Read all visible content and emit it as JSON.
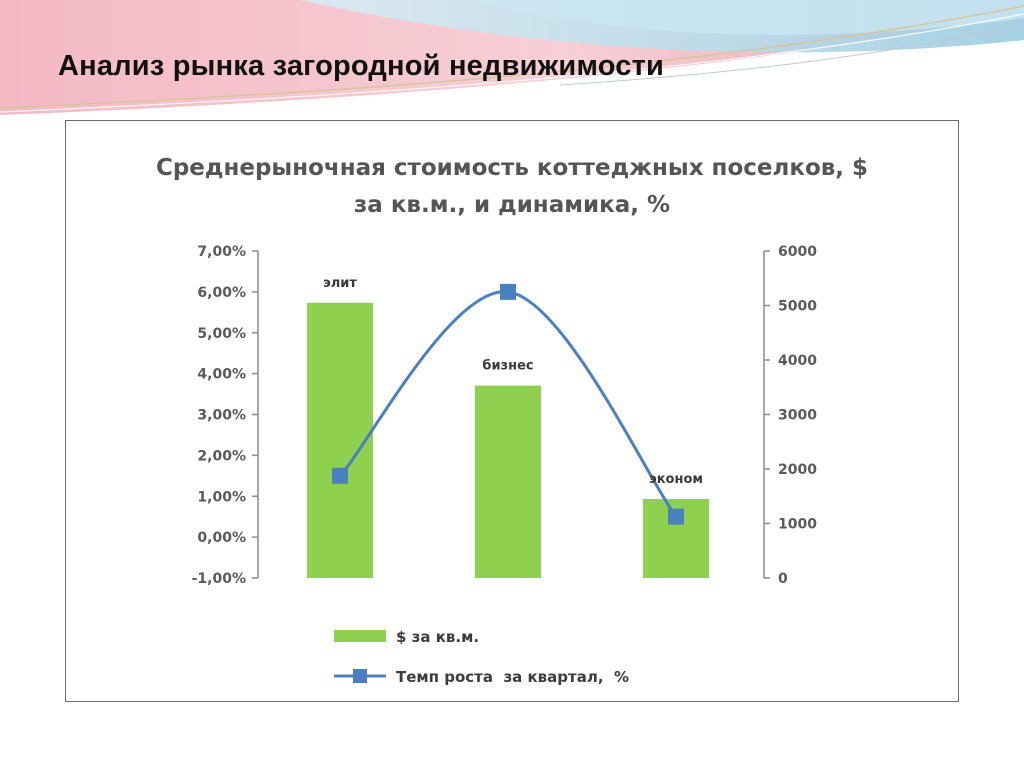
{
  "slide": {
    "title": "Анализ рынка загородной недвижимости"
  },
  "colors": {
    "bar": "#8fd14f",
    "line": "#4a7fc1",
    "marker": "#4a7fc1",
    "text": "#555555",
    "axis": "#8c8c8c"
  },
  "chart_data": {
    "type": "bar",
    "title_lines": [
      "Среднерыночная стоимость коттеджных поселков, $",
      "за кв.м., и динамика, %"
    ],
    "categories": [
      "элит",
      "бизнес",
      "эконом"
    ],
    "category_labels_shown_as_data_labels": true,
    "series": [
      {
        "name": "$ за кв.м.",
        "type": "bar",
        "axis": "right",
        "values": [
          5050,
          3530,
          1450
        ]
      },
      {
        "name": "Темп роста  за квартал,  %",
        "type": "line",
        "smooth": true,
        "axis": "left",
        "values": [
          0.015,
          0.06,
          0.005
        ]
      }
    ],
    "y_left": {
      "min": -0.01,
      "max": 0.07,
      "step": 0.01,
      "tick_labels": [
        "7,00%",
        "6,00%",
        "5,00%",
        "4,00%",
        "3,00%",
        "2,00%",
        "1,00%",
        "0,00%",
        "-1,00%"
      ]
    },
    "y_right": {
      "min": 0,
      "max": 6000,
      "step": 1000,
      "tick_labels": [
        "6000",
        "5000",
        "4000",
        "3000",
        "2000",
        "1000",
        "0"
      ]
    },
    "grid": false,
    "legend_position": "bottom"
  }
}
